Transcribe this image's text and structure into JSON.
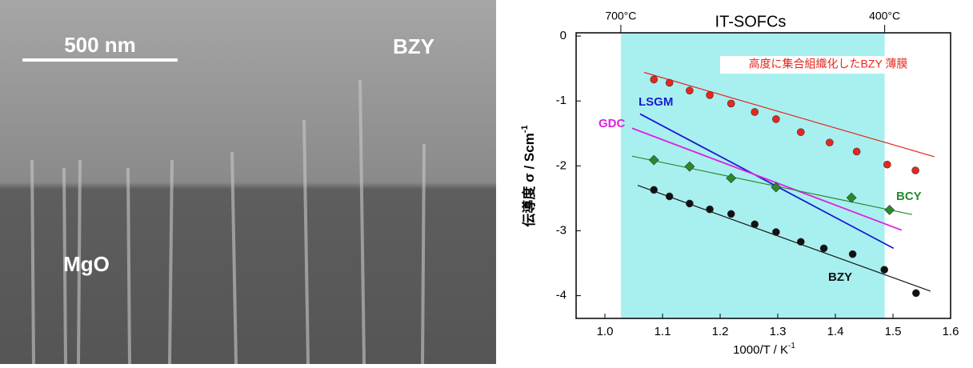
{
  "image": {
    "scale_bar": "500 nm",
    "top_label": "BZY",
    "bottom_label": "MgO"
  },
  "chart_data": {
    "type": "scatter",
    "title": "IT-SOFCs",
    "x_label": "1000/T  /  K",
    "x_label_sup": "-1",
    "y_label": "伝導度 σ / Scm",
    "y_label_sup": "-1",
    "xlim": [
      0.95,
      1.6
    ],
    "ylim": [
      -4.35,
      0.05
    ],
    "xticks": [
      {
        "value": 1.0,
        "label": "1.0"
      },
      {
        "value": 1.1,
        "label": "1.1"
      },
      {
        "value": 1.2,
        "label": "1.2"
      },
      {
        "value": 1.3,
        "label": "1.3"
      },
      {
        "value": 1.4,
        "label": "1.4"
      },
      {
        "value": 1.5,
        "label": "1.5"
      },
      {
        "value": 1.6,
        "label": "1.6"
      }
    ],
    "yticks": [
      0,
      -1,
      -2,
      -3,
      -4
    ],
    "top_ticks": [
      {
        "value": 1.0276,
        "label": "700°C"
      },
      {
        "value": 1.4856,
        "label": "400°C"
      }
    ],
    "band": [
      1.0276,
      1.4856
    ],
    "band_color": "#a8f0f0",
    "series": [
      {
        "name": "高度に集合組織化したBZY 薄膜",
        "color": "#e8261c",
        "marker": "circle",
        "x": [
          1.085,
          1.112,
          1.147,
          1.182,
          1.219,
          1.26,
          1.297,
          1.34,
          1.39,
          1.437,
          1.49,
          1.539
        ],
        "values": [
          -0.67,
          -0.72,
          -0.84,
          -0.91,
          -1.04,
          -1.17,
          -1.28,
          -1.48,
          -1.64,
          -1.78,
          -1.98,
          -2.07
        ],
        "fit_x": [
          1.068,
          1.572
        ],
        "fit_values": [
          -0.56,
          -1.86
        ]
      },
      {
        "name": "LSGM",
        "color": "#1a1ad0",
        "fit_x": [
          1.061,
          1.501
        ],
        "fit_values": [
          -1.2,
          -3.27
        ]
      },
      {
        "name": "GDC",
        "color": "#e020e0",
        "fit_x": [
          1.047,
          1.515
        ],
        "fit_values": [
          -1.42,
          -2.99
        ]
      },
      {
        "name": "BCY",
        "color": "#2a8a2a",
        "marker": "diamond",
        "x": [
          1.085,
          1.147,
          1.219,
          1.297,
          1.428,
          1.494
        ],
        "values": [
          -1.91,
          -2.01,
          -2.19,
          -2.33,
          -2.49,
          -2.68
        ],
        "fit_x": [
          1.047,
          1.533
        ],
        "fit_values": [
          -1.85,
          -2.75
        ]
      },
      {
        "name": "BZY",
        "color": "#111111",
        "marker": "circle",
        "x": [
          1.085,
          1.112,
          1.147,
          1.182,
          1.219,
          1.26,
          1.297,
          1.34,
          1.38,
          1.43,
          1.485,
          1.54
        ],
        "values": [
          -2.37,
          -2.47,
          -2.58,
          -2.67,
          -2.74,
          -2.9,
          -3.02,
          -3.17,
          -3.27,
          -3.36,
          -3.6,
          -3.96
        ],
        "fit_x": [
          1.057,
          1.565
        ],
        "fit_values": [
          -2.3,
          -3.93
        ]
      }
    ]
  }
}
